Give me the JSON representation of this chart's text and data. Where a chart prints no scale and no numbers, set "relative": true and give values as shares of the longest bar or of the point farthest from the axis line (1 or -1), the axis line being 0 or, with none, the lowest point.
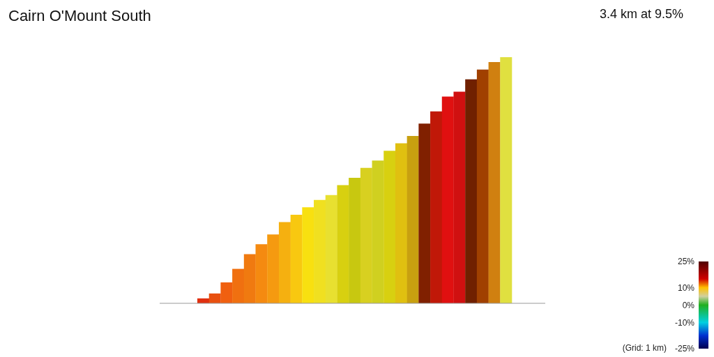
{
  "chart_data": {
    "type": "bar",
    "title": "Cairn O'Mount South",
    "subtitle": "3.4 km at 9.5%",
    "relative": true,
    "categories": [
      null,
      null,
      null,
      null,
      null,
      null,
      null,
      null,
      null,
      null,
      null,
      null,
      null,
      null,
      null,
      null,
      null,
      null,
      null,
      null,
      null,
      null,
      null,
      null,
      null,
      null,
      null
    ],
    "values": [
      0.02,
      0.04,
      0.085,
      0.14,
      0.2,
      0.24,
      0.28,
      0.33,
      0.36,
      0.39,
      0.42,
      0.44,
      0.48,
      0.51,
      0.55,
      0.58,
      0.62,
      0.65,
      0.68,
      0.73,
      0.78,
      0.84,
      0.86,
      0.91,
      0.95,
      0.98,
      1.0
    ],
    "colors": [
      "#e03010",
      "#e85010",
      "#f06010",
      "#f07010",
      "#f07a10",
      "#f58a10",
      "#f59a10",
      "#f5b010",
      "#f8c810",
      "#f8e010",
      "#f0e020",
      "#e8e030",
      "#d8d010",
      "#c8c810",
      "#d8d020",
      "#d0d020",
      "#d8d010",
      "#e0c010",
      "#c8a010",
      "#802000",
      "#c01808",
      "#e01010",
      "#d01010",
      "#702000",
      "#a04000",
      "#d08010",
      "#e0e040"
    ],
    "clim": [
      -25,
      25
    ],
    "cticks": [
      {
        "value": 25,
        "label": "25%"
      },
      {
        "value": 10,
        "label": "10%"
      },
      {
        "value": 0,
        "label": "0%"
      },
      {
        "value": -10,
        "label": "-10%"
      },
      {
        "value": -25,
        "label": "-25%"
      }
    ],
    "annotations": [
      "(Grid: 1 km)"
    ]
  }
}
